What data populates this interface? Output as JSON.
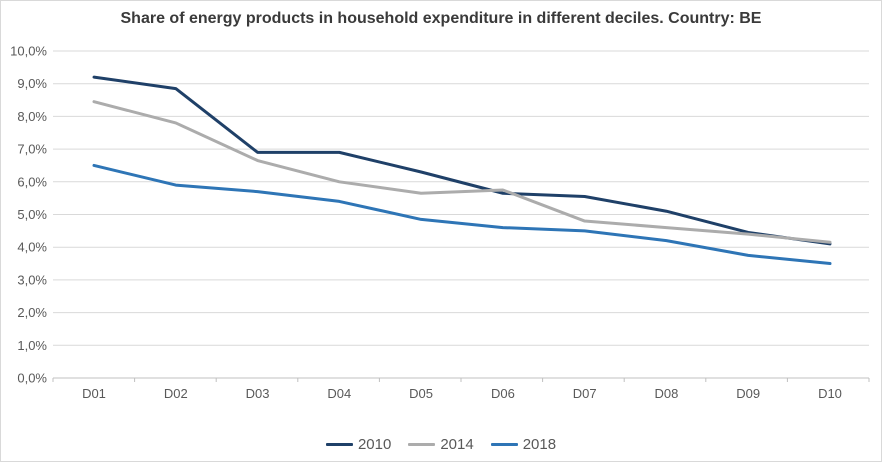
{
  "chart_data": {
    "type": "line",
    "title": "Share of energy products in household expenditure in different deciles. Country: BE",
    "categories": [
      "D01",
      "D02",
      "D03",
      "D04",
      "D05",
      "D06",
      "D07",
      "D08",
      "D09",
      "D10"
    ],
    "series": [
      {
        "name": "2010",
        "color": "#1F4068",
        "values": [
          9.2,
          8.85,
          6.9,
          6.9,
          6.3,
          5.65,
          5.55,
          5.1,
          4.45,
          4.1
        ]
      },
      {
        "name": "2014",
        "color": "#ACACAC",
        "values": [
          8.45,
          7.8,
          6.65,
          6.0,
          5.65,
          5.75,
          4.8,
          4.6,
          4.4,
          4.15
        ]
      },
      {
        "name": "2018",
        "color": "#2E75B6",
        "values": [
          6.5,
          5.9,
          5.7,
          5.4,
          4.85,
          4.6,
          4.5,
          4.2,
          3.75,
          3.5
        ]
      }
    ],
    "ylim": [
      0,
      10
    ],
    "y_tick_step": 1,
    "y_tick_labels": [
      "0,0%",
      "1,0%",
      "2,0%",
      "3,0%",
      "4,0%",
      "5,0%",
      "6,0%",
      "7,0%",
      "8,0%",
      "9,0%",
      "10,0%"
    ],
    "xlabel": "",
    "ylabel": "",
    "grid": true,
    "legend_position": "bottom"
  },
  "colors": {
    "grid": "#D9D9D9",
    "axis": "#C0C0C0",
    "tick_text": "#595959",
    "title_text": "#3A3A3A",
    "background": "#FFFFFF",
    "border": "#D9D9D9"
  }
}
